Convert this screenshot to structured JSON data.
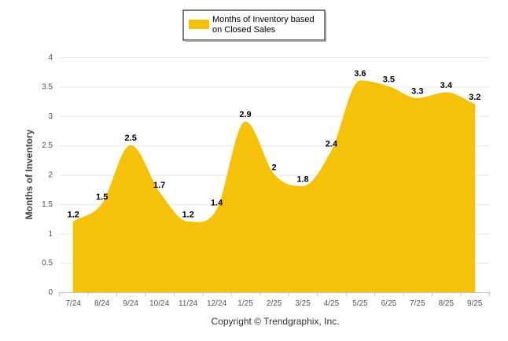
{
  "chart_data": {
    "type": "area",
    "title": "",
    "xlabel": "",
    "ylabel": "Months of Inventory",
    "categories": [
      "7/24",
      "8/24",
      "9/24",
      "10/24",
      "11/24",
      "12/24",
      "1/25",
      "2/25",
      "3/25",
      "4/25",
      "5/25",
      "6/25",
      "7/25",
      "8/25",
      "9/25"
    ],
    "series": [
      {
        "name": "Months of Inventory based on Closed Sales",
        "color": "#f5c10a",
        "values": [
          1.2,
          1.5,
          2.5,
          1.7,
          1.2,
          1.4,
          2.9,
          2,
          1.8,
          2.4,
          3.6,
          3.5,
          3.3,
          3.4,
          3.2
        ],
        "labels": [
          "1.2",
          "1.5",
          "2.5",
          "1.7",
          "1.2",
          "1.4",
          "2.9",
          "2",
          "1.8",
          "2.4",
          "3.6",
          "3.5",
          "3.3",
          "3.4",
          "3.2"
        ]
      }
    ],
    "yticks": [
      "0",
      "0.5",
      "1",
      "1.5",
      "2",
      "2.5",
      "3",
      "3.5",
      "4"
    ],
    "ylim": [
      0,
      4
    ],
    "grid": true,
    "legend": {
      "placement": "top-center",
      "line1": "Months of Inventory based",
      "line2": "on Closed Sales"
    },
    "footer": "Copyright © Trendgraphix, Inc."
  }
}
